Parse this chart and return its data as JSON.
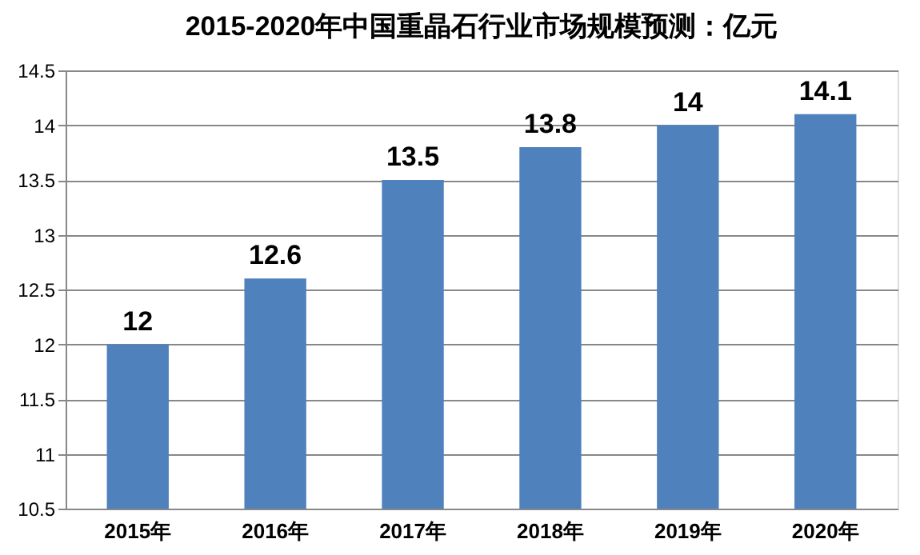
{
  "chart_data": {
    "type": "bar",
    "title": "2015-2020年中国重晶石行业市场规模预测：亿元",
    "categories": [
      "2015年",
      "2016年",
      "2017年",
      "2018年",
      "2019年",
      "2020年"
    ],
    "values": [
      12,
      12.6,
      13.5,
      13.8,
      14,
      14.1
    ],
    "color": "#4f81bd",
    "ylim": [
      10.5,
      14.5
    ],
    "yticks": [
      10.5,
      11,
      11.5,
      12,
      12.5,
      13,
      13.5,
      14,
      14.5
    ],
    "grid": "y",
    "data_labels": true
  }
}
